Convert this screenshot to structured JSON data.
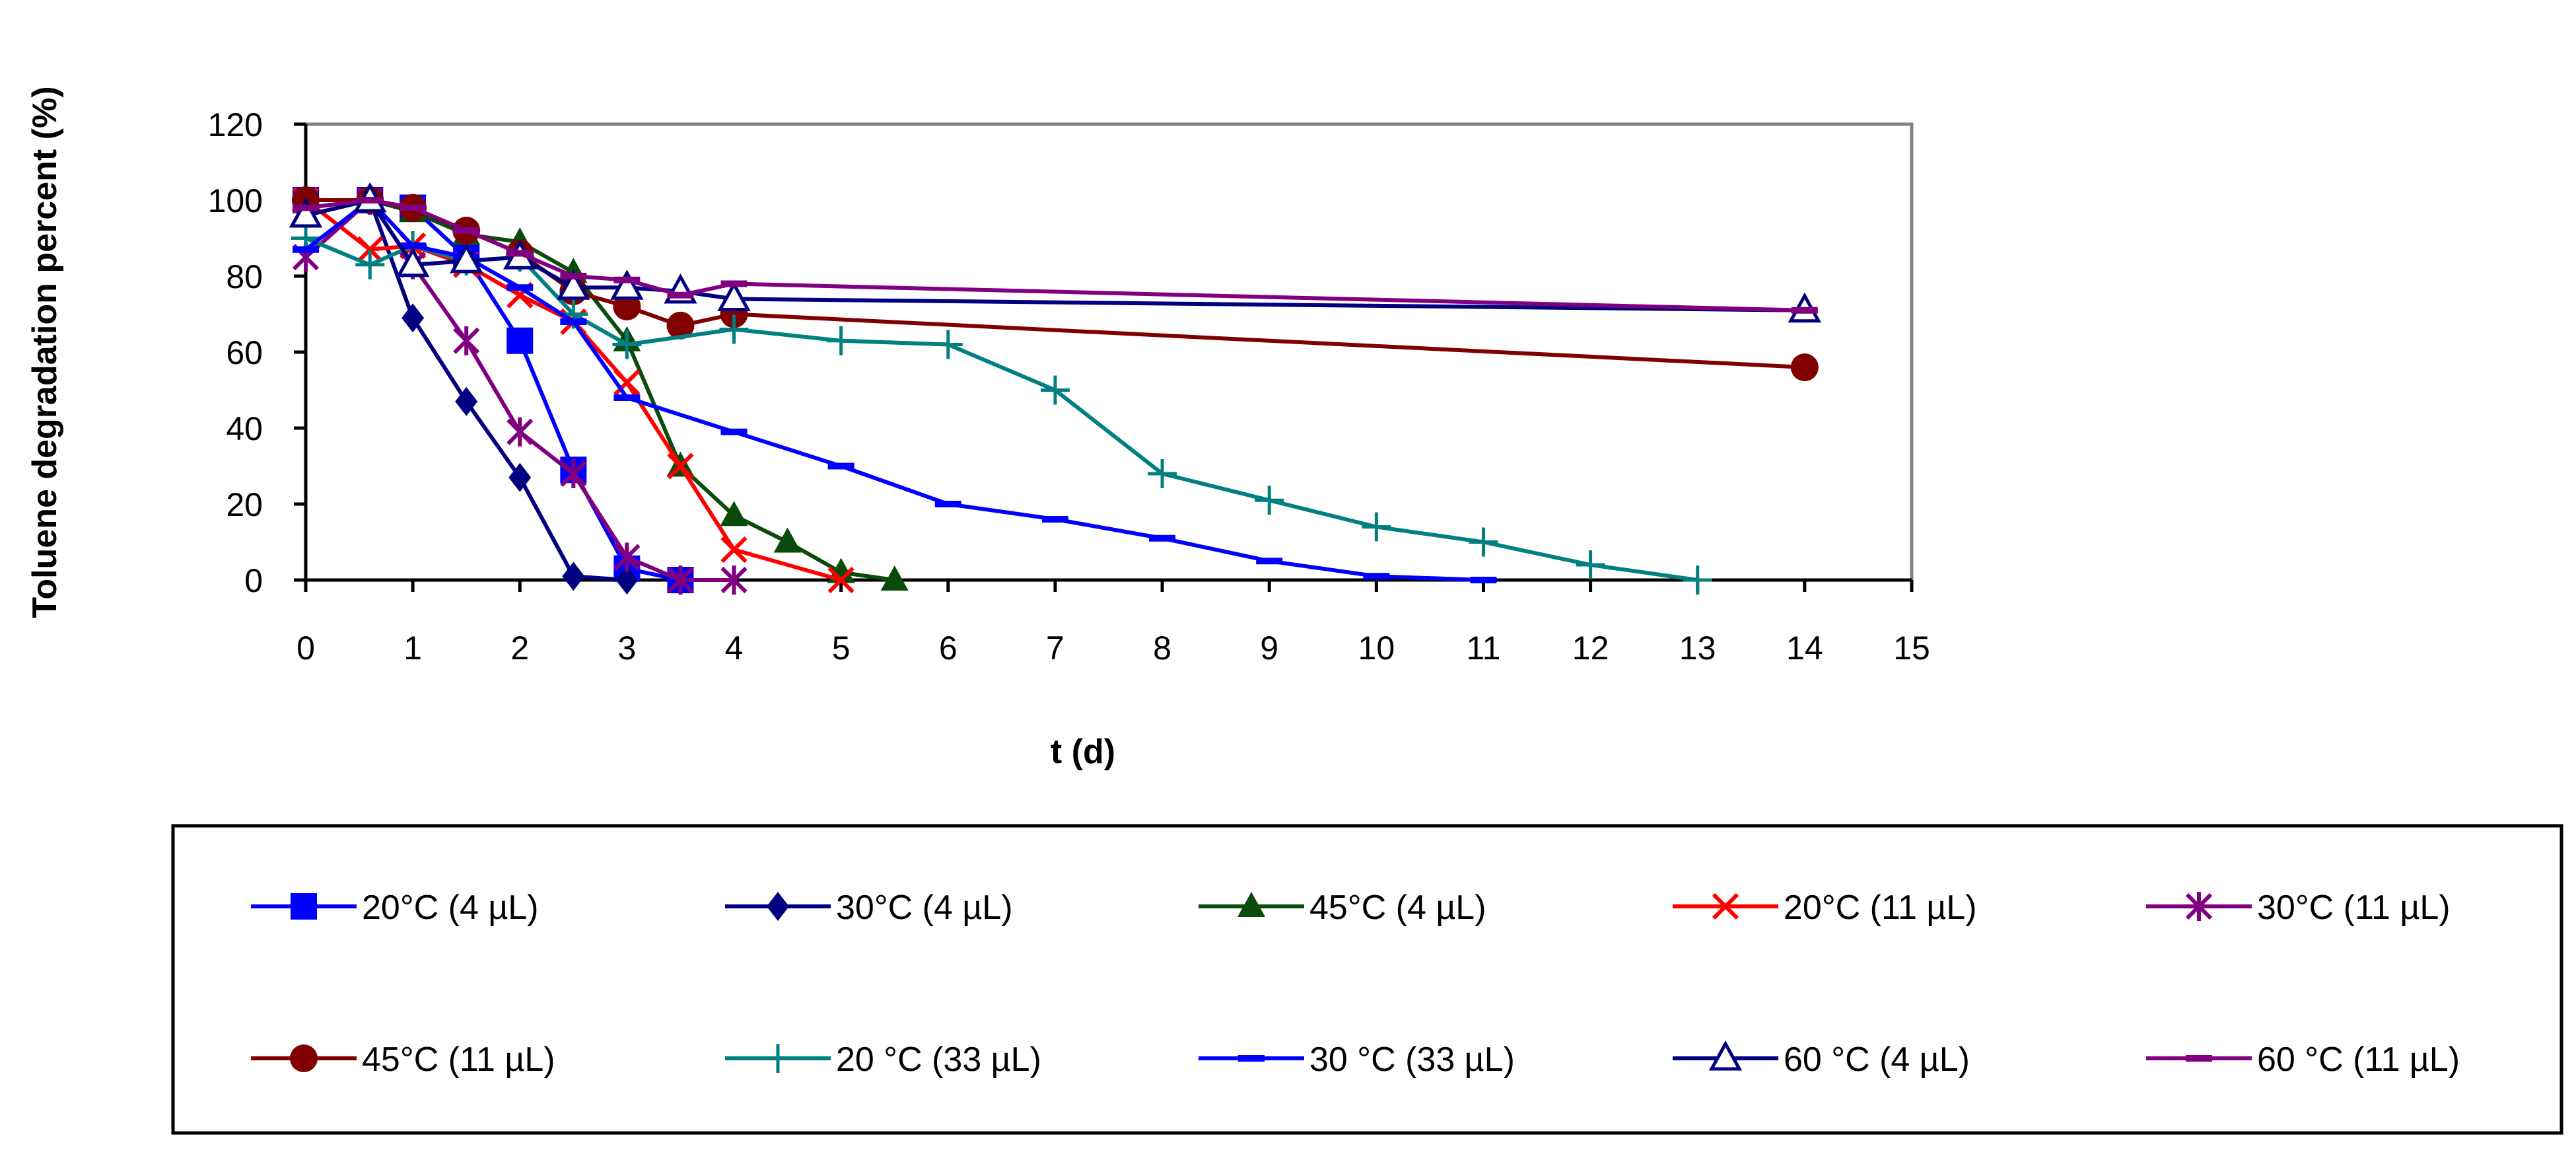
{
  "chart_data": {
    "type": "line",
    "title": "",
    "xlabel": "t (d)",
    "ylabel": "Toluene degradation percent  (%)",
    "xlim": [
      0,
      15
    ],
    "ylim": [
      0,
      120
    ],
    "xticks": [
      "0",
      "1",
      "2",
      "3",
      "4",
      "5",
      "6",
      "7",
      "8",
      "9",
      "10",
      "11",
      "12",
      "13",
      "14",
      "15"
    ],
    "yticks": [
      "0",
      "20",
      "40",
      "60",
      "80",
      "100",
      "120"
    ],
    "grid": false,
    "legend_position": "bottom",
    "series": [
      {
        "name": "20°C (4 µL)",
        "color": "#0000FF",
        "marker": "square",
        "x": [
          0,
          0.6,
          1,
          1.5,
          2,
          2.5,
          3,
          3.5
        ],
        "y": [
          100,
          100,
          98,
          85,
          63,
          29,
          3,
          0
        ]
      },
      {
        "name": "30°C (4 µL)",
        "color": "#000080",
        "marker": "diamond",
        "x": [
          0,
          0.6,
          1,
          1.5,
          2,
          2.5,
          3
        ],
        "y": [
          100,
          100,
          69,
          47,
          27,
          1,
          0
        ]
      },
      {
        "name": "45°C (4 µL)",
        "color": "#0A4A0A",
        "marker": "triangle",
        "x": [
          0,
          0.6,
          1,
          1.5,
          2,
          2.5,
          3,
          3.5,
          4,
          4.5,
          5,
          5.5
        ],
        "y": [
          100,
          100,
          97,
          91,
          89,
          81,
          63,
          30,
          17,
          10,
          2,
          0
        ]
      },
      {
        "name": "20°C (11 µL)",
        "color": "#FF0000",
        "marker": "x",
        "x": [
          0,
          0.6,
          1,
          1.5,
          2,
          2.5,
          3,
          3.5,
          4,
          5
        ],
        "y": [
          100,
          87,
          88,
          83,
          75,
          68,
          52,
          30,
          8,
          0
        ]
      },
      {
        "name": "30°C (11 µL)",
        "color": "#800080",
        "marker": "star",
        "x": [
          0,
          0.6,
          1,
          1.5,
          2,
          2.5,
          3,
          3.5,
          4
        ],
        "y": [
          85,
          100,
          83,
          63,
          39,
          28,
          6,
          0,
          0
        ]
      },
      {
        "name": "45°C (11 µL)",
        "color": "#800000",
        "marker": "circle",
        "x": [
          0,
          0.6,
          1,
          1.5,
          2,
          2.5,
          3,
          3.5,
          4,
          14
        ],
        "y": [
          100,
          100,
          98,
          92,
          86,
          76,
          72,
          67,
          70,
          56
        ]
      },
      {
        "name": "20 °C (33 µL)",
        "color": "#008080",
        "marker": "plus",
        "x": [
          0,
          0.6,
          1,
          1.5,
          2,
          2.5,
          3,
          4,
          5,
          6,
          7,
          8,
          9,
          10,
          11,
          12,
          13
        ],
        "y": [
          90,
          83,
          88,
          84,
          85,
          70,
          62,
          66,
          63,
          62,
          50,
          28,
          21,
          14,
          10,
          4,
          0
        ]
      },
      {
        "name": "30 °C (33 µL)",
        "color": "#0000FF",
        "marker": "dash",
        "x": [
          0,
          0.6,
          1,
          1.5,
          2,
          2.5,
          3,
          4,
          5,
          6,
          7,
          8,
          9,
          10,
          11
        ],
        "y": [
          87,
          100,
          88,
          85,
          77,
          68,
          48,
          39,
          30,
          20,
          16,
          11,
          5,
          1,
          0
        ]
      },
      {
        "name": "60 °C (4 µL)",
        "color": "#000080",
        "marker": "triangle-open",
        "x": [
          0,
          0.6,
          1,
          1.5,
          2,
          2.5,
          3,
          3.5,
          4,
          14
        ],
        "y": [
          96,
          100,
          83,
          84,
          85,
          77,
          77,
          76,
          74,
          71
        ]
      },
      {
        "name": "60 °C (11 µL)",
        "color": "#800080",
        "marker": "dash",
        "x": [
          0,
          0.6,
          1,
          1.5,
          2,
          2.5,
          3,
          3.5,
          4,
          14
        ],
        "y": [
          98,
          100,
          98,
          92,
          86,
          80,
          79,
          75,
          78,
          71
        ]
      }
    ]
  }
}
